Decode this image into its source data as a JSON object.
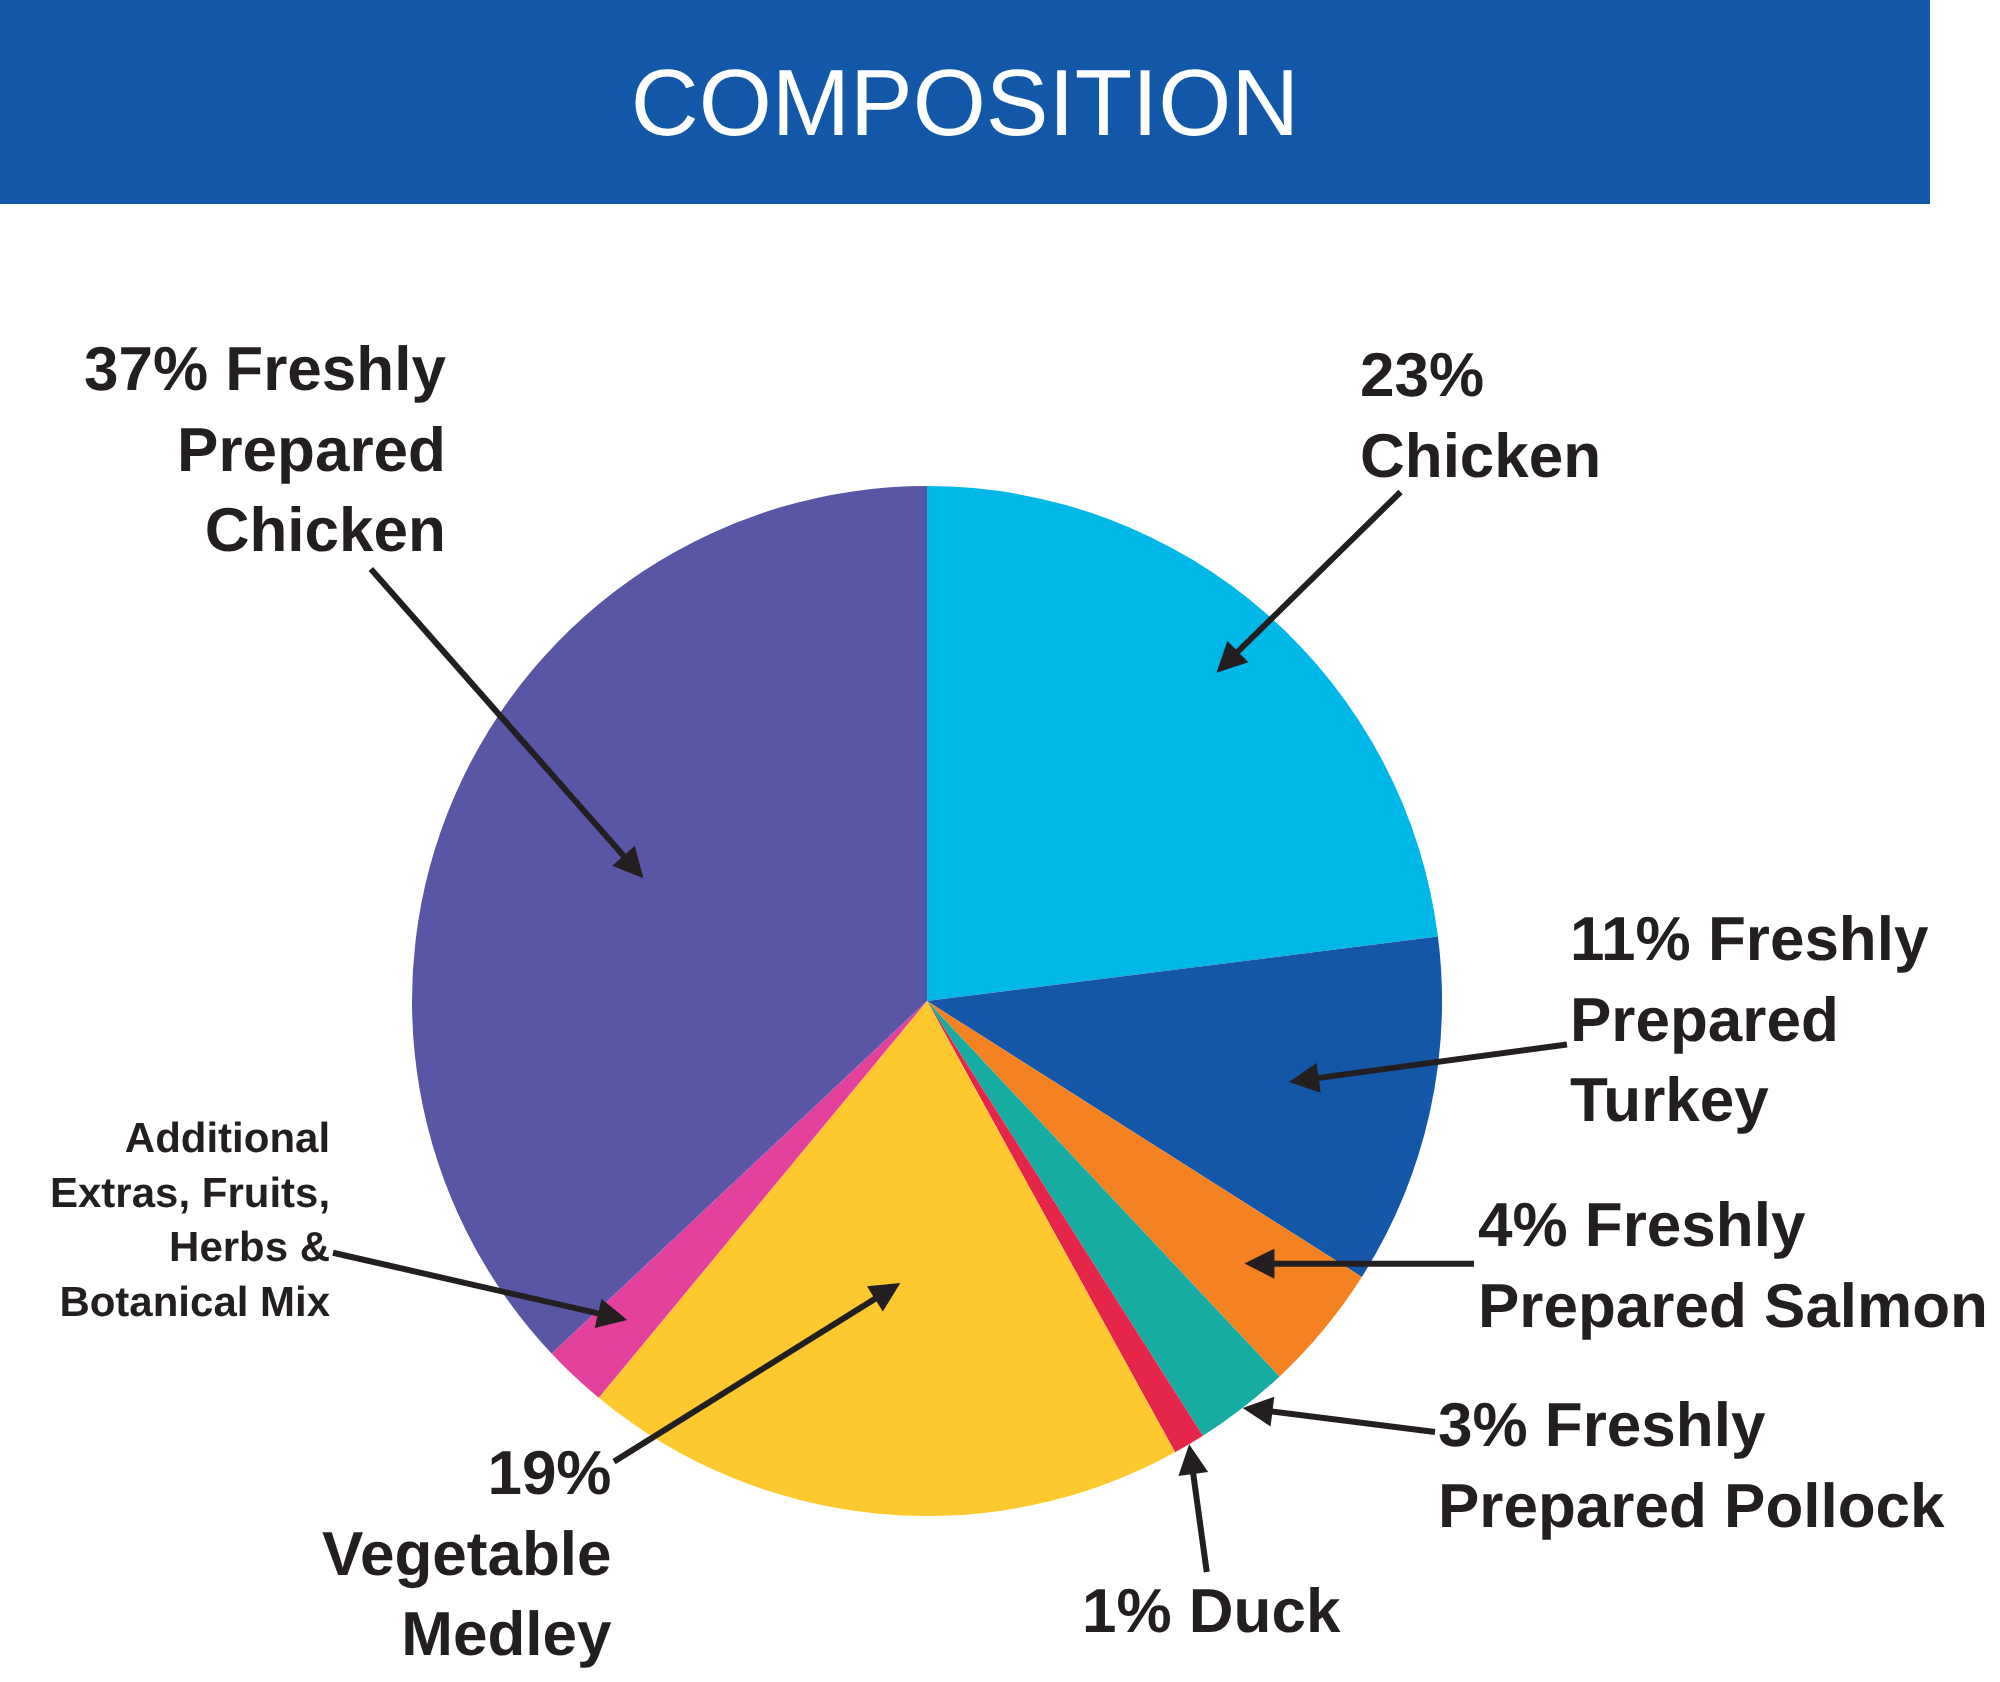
{
  "chart_data": {
    "type": "pie",
    "title": "COMPOSITION",
    "categories": [
      "Chicken",
      "Freshly Prepared Turkey",
      "Freshly Prepared Salmon",
      "Freshly Prepared Pollock",
      "Duck",
      "Vegetable Medley",
      "Additional Extras, Fruits, Herbs & Botanical Mix",
      "Freshly Prepared Chicken"
    ],
    "values": [
      23,
      11,
      4,
      3,
      1,
      19,
      2,
      37
    ],
    "value_labels": [
      "23%",
      "11%",
      "4%",
      "3%",
      "1%",
      "19%",
      null,
      "37%"
    ],
    "colors": [
      "#00b8e8",
      "#1456a8",
      "#f58220",
      "#16aba3",
      "#e6254a",
      "#fdc92f",
      "#e4419c",
      "#5956a5"
    ]
  }
}
